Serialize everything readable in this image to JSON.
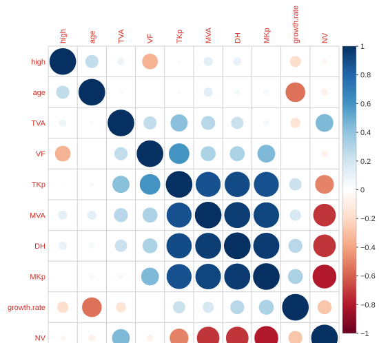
{
  "chart_data": {
    "type": "heatmap",
    "subtype": "correlation-circle-matrix",
    "variables": [
      "high",
      "age",
      "TVA",
      "VF",
      "TKp",
      "MVA",
      "DH",
      "MKp",
      "growth.rate",
      "NV"
    ],
    "matrix": [
      [
        1.0,
        0.25,
        0.08,
        -0.35,
        0.02,
        0.12,
        0.1,
        0.0,
        -0.18,
        -0.05
      ],
      [
        0.25,
        1.0,
        0.03,
        0.0,
        0.03,
        0.12,
        0.05,
        0.05,
        -0.55,
        -0.07
      ],
      [
        0.08,
        0.03,
        1.0,
        0.25,
        0.42,
        0.28,
        0.22,
        0.05,
        -0.15,
        0.45
      ],
      [
        -0.35,
        0.0,
        0.25,
        1.0,
        0.6,
        0.32,
        0.32,
        0.45,
        0.0,
        -0.07
      ],
      [
        0.02,
        0.03,
        0.42,
        0.6,
        1.0,
        0.88,
        0.9,
        0.88,
        0.22,
        -0.5
      ],
      [
        0.12,
        0.12,
        0.28,
        0.32,
        0.88,
        1.0,
        0.95,
        0.92,
        0.18,
        -0.72
      ],
      [
        0.1,
        0.05,
        0.22,
        0.32,
        0.9,
        0.95,
        1.0,
        0.96,
        0.28,
        -0.72
      ],
      [
        0.0,
        0.05,
        0.05,
        0.45,
        0.88,
        0.92,
        0.96,
        1.0,
        0.32,
        -0.8
      ],
      [
        -0.18,
        -0.55,
        -0.15,
        0.0,
        0.22,
        0.18,
        0.28,
        0.32,
        1.0,
        -0.28
      ],
      [
        -0.05,
        -0.07,
        0.45,
        -0.07,
        -0.5,
        -0.72,
        -0.72,
        -0.8,
        -0.28,
        1.0
      ]
    ],
    "colorbar": {
      "range": [
        -1,
        1
      ],
      "ticks": [
        -1,
        -0.8,
        -0.6,
        -0.4,
        -0.2,
        0,
        0.2,
        0.4,
        0.6,
        0.8,
        1
      ],
      "tick_labels": [
        "−1",
        "−0.8",
        "−0.6",
        "−0.4",
        "−0.2",
        "0",
        "0.2",
        "0.4",
        "0.6",
        "0.8",
        "1"
      ],
      "colors": [
        "#67001f",
        "#b2182b",
        "#d6604d",
        "#f4a582",
        "#fddbc7",
        "#ffffff",
        "#d1e5f0",
        "#92c5de",
        "#4393c3",
        "#2166ac",
        "#053061"
      ]
    },
    "label_color": "#d62f27",
    "grid": true,
    "legend": "right"
  }
}
